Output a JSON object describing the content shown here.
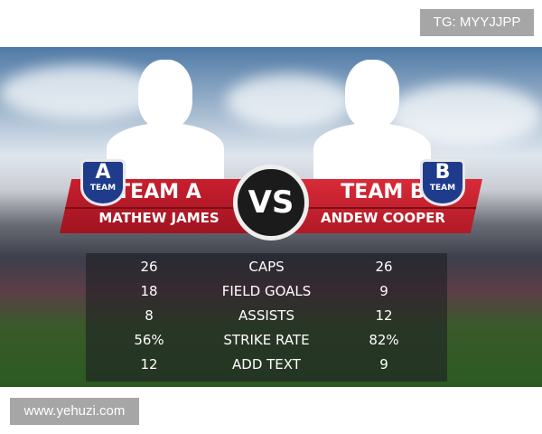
{
  "watermark_top": "TG: MYYJJPP",
  "watermark_bottom": "www.yehuzi.com",
  "team_a": {
    "badge_letter": "A",
    "badge_text": "TEAM",
    "name": "TEAM A",
    "player": "MATHEW JAMES"
  },
  "team_b": {
    "badge_letter": "B",
    "badge_text": "TEAM",
    "name": "TEAM B",
    "player": "ANDEW COOPER"
  },
  "vs_label": "VS",
  "stats": [
    {
      "a": "26",
      "label": "CAPS",
      "b": "26"
    },
    {
      "a": "18",
      "label": "FIELD GOALS",
      "b": "9"
    },
    {
      "a": "8",
      "label": "ASSISTS",
      "b": "12"
    },
    {
      "a": "56%",
      "label": "STRIKE RATE",
      "b": "82%"
    },
    {
      "a": "12",
      "label": "ADD TEXT",
      "b": "9"
    }
  ],
  "colors": {
    "banner_red": "#c91f2f",
    "badge_blue": "#1f3c8c",
    "vs_bg": "#1b1b1b"
  }
}
